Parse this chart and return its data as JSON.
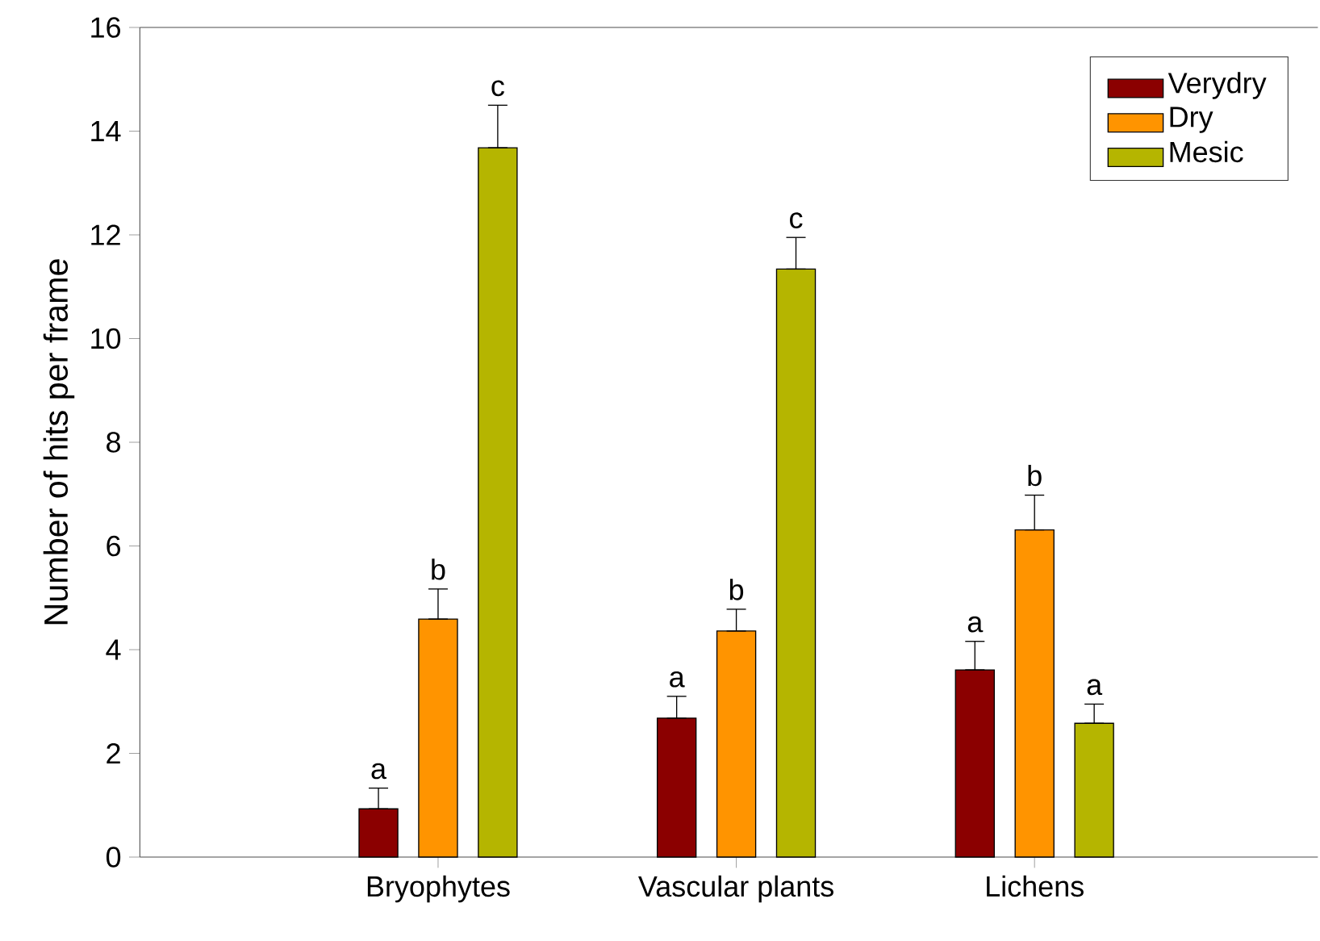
{
  "chart_data": {
    "type": "bar",
    "ylabel": "Number of hits per frame",
    "categories": [
      "Bryophytes",
      "Vascular plants",
      "Lichens"
    ],
    "series": [
      {
        "name": "Verydry",
        "color": "#8b0000",
        "values": [
          0.93,
          2.68,
          3.61
        ],
        "errors": [
          [
            0.93,
            1.33
          ],
          [
            2.68,
            3.1
          ],
          [
            3.61,
            4.16
          ]
        ],
        "value_labels": [
          "a",
          "a",
          "a"
        ]
      },
      {
        "name": "Dry",
        "color": "#ff9400",
        "values": [
          4.59,
          4.36,
          6.31
        ],
        "errors": [
          [
            4.59,
            5.17
          ],
          [
            4.36,
            4.78
          ],
          [
            6.31,
            6.98
          ]
        ],
        "value_labels": [
          "b",
          "b",
          "b"
        ]
      },
      {
        "name": "Mesic",
        "color": "#b5b500",
        "values": [
          13.68,
          11.34,
          2.58
        ],
        "errors": [
          [
            13.68,
            14.5
          ],
          [
            11.34,
            11.95
          ],
          [
            2.58,
            2.95
          ]
        ],
        "value_labels": [
          "c",
          "c",
          "a"
        ]
      }
    ],
    "ylim": [
      0,
      16
    ],
    "yticks": [
      0,
      2,
      4,
      6,
      8,
      10,
      12,
      14,
      16
    ],
    "legend": "top right",
    "grid": false
  }
}
